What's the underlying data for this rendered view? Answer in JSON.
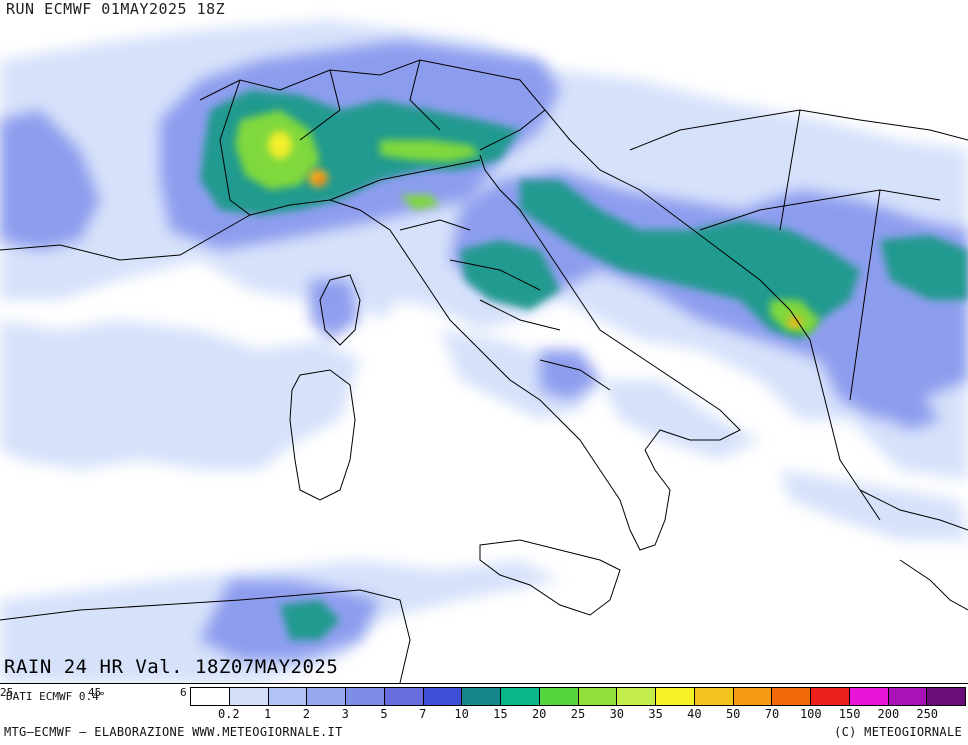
{
  "header": {
    "run_label": "RUN ECMWF 01MAY2025 18Z"
  },
  "map": {
    "title": "RAIN  24  HR  Val.  18Z07MAY2025",
    "region": "Italy and central Mediterranean",
    "colors": {
      "land_border": "#000000",
      "background": "#ffffff"
    }
  },
  "info": {
    "dati": "DATI ECMWF 0.4°",
    "tick_a": "25",
    "tick_b": "45",
    "tick_c": "6"
  },
  "legend": {
    "thresholds": [
      "0.2",
      "1",
      "2",
      "3",
      "5",
      "7",
      "10",
      "15",
      "20",
      "25",
      "30",
      "35",
      "40",
      "50",
      "70",
      "100",
      "150",
      "200",
      "250"
    ],
    "colors": [
      "#ffffff",
      "#d4e0fa",
      "#b3c3f5",
      "#95a8f0",
      "#7e8ee8",
      "#6a6de0",
      "#3d4fd6",
      "#17868a",
      "#0ab58a",
      "#55d43c",
      "#8fe03a",
      "#c2ed4c",
      "#f5f22a",
      "#f5c21e",
      "#f59a14",
      "#f06a0c",
      "#ec1e1e",
      "#e814d8",
      "#a812b8",
      "#6a0c7a"
    ]
  },
  "footer": {
    "left": "MTG–ECMWF – ELABORAZIONE WWW.METEOGIORNALE.IT",
    "right": "(C) METEOGIORNALE"
  }
}
